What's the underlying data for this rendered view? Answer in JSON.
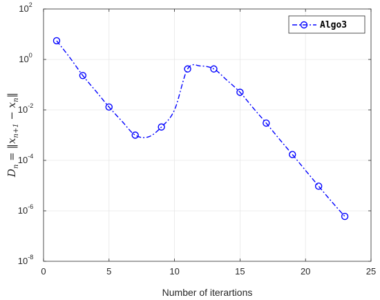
{
  "chart_data": {
    "type": "line",
    "xlabel": "Number of iterartions",
    "ylabel": "D_n = ||x_{n+1} - x_n||",
    "ylabel_parts": {
      "lhs": "D",
      "lhs_sub": "n",
      "eq": " = ‖",
      "x1": "x",
      "x1_sub": "n+1",
      "minus": " − ",
      "x2": "x",
      "x2_sub": "n",
      "close": "‖"
    },
    "xlim": [
      0,
      25
    ],
    "ylim": [
      1e-08,
      100
    ],
    "yscale": "log",
    "grid": true,
    "legend_position": "top-right",
    "xticks": [
      {
        "value": 0,
        "label": "0"
      },
      {
        "value": 5,
        "label": "5"
      },
      {
        "value": 10,
        "label": "10"
      },
      {
        "value": 15,
        "label": "15"
      },
      {
        "value": 20,
        "label": "20"
      },
      {
        "value": 25,
        "label": "25"
      }
    ],
    "yticks": [
      {
        "value": 1e-08,
        "base": "10",
        "exp": "-8"
      },
      {
        "value": 1e-06,
        "base": "10",
        "exp": "-6"
      },
      {
        "value": 0.0001,
        "base": "10",
        "exp": "-4"
      },
      {
        "value": 0.01,
        "base": "10",
        "exp": "-2"
      },
      {
        "value": 1,
        "base": "10",
        "exp": "0"
      },
      {
        "value": 100,
        "base": "10",
        "exp": "2"
      }
    ],
    "series": [
      {
        "name": "Algo3",
        "color": "#0000ff",
        "line_style": "dash-dot",
        "marker": "circle",
        "curve": [
          {
            "x": 1,
            "y": 5.5
          },
          {
            "x": 2,
            "y": 1.2
          },
          {
            "x": 3,
            "y": 0.23
          },
          {
            "x": 4,
            "y": 0.055
          },
          {
            "x": 5,
            "y": 0.013
          },
          {
            "x": 6,
            "y": 0.0035
          },
          {
            "x": 7,
            "y": 0.001
          },
          {
            "x": 8,
            "y": 0.00085
          },
          {
            "x": 9,
            "y": 0.0021
          },
          {
            "x": 10,
            "y": 0.01
          },
          {
            "x": 11,
            "y": 0.42
          },
          {
            "x": 12,
            "y": 0.55
          },
          {
            "x": 13,
            "y": 0.42
          },
          {
            "x": 14,
            "y": 0.15
          },
          {
            "x": 15,
            "y": 0.05
          },
          {
            "x": 16,
            "y": 0.012
          },
          {
            "x": 17,
            "y": 0.003
          },
          {
            "x": 18,
            "y": 0.0007
          },
          {
            "x": 19,
            "y": 0.00017
          },
          {
            "x": 20,
            "y": 4e-05
          },
          {
            "x": 21,
            "y": 9.5e-06
          },
          {
            "x": 22,
            "y": 2.3e-06
          },
          {
            "x": 23,
            "y": 6e-07
          }
        ],
        "markers_at": [
          {
            "x": 1,
            "y": 5.5
          },
          {
            "x": 3,
            "y": 0.23
          },
          {
            "x": 5,
            "y": 0.013
          },
          {
            "x": 7,
            "y": 0.001
          },
          {
            "x": 9,
            "y": 0.0021
          },
          {
            "x": 11,
            "y": 0.42
          },
          {
            "x": 13,
            "y": 0.42
          },
          {
            "x": 15,
            "y": 0.05
          },
          {
            "x": 17,
            "y": 0.003
          },
          {
            "x": 19,
            "y": 0.00017
          },
          {
            "x": 21,
            "y": 9.5e-06
          },
          {
            "x": 23,
            "y": 6e-07
          }
        ]
      }
    ]
  }
}
